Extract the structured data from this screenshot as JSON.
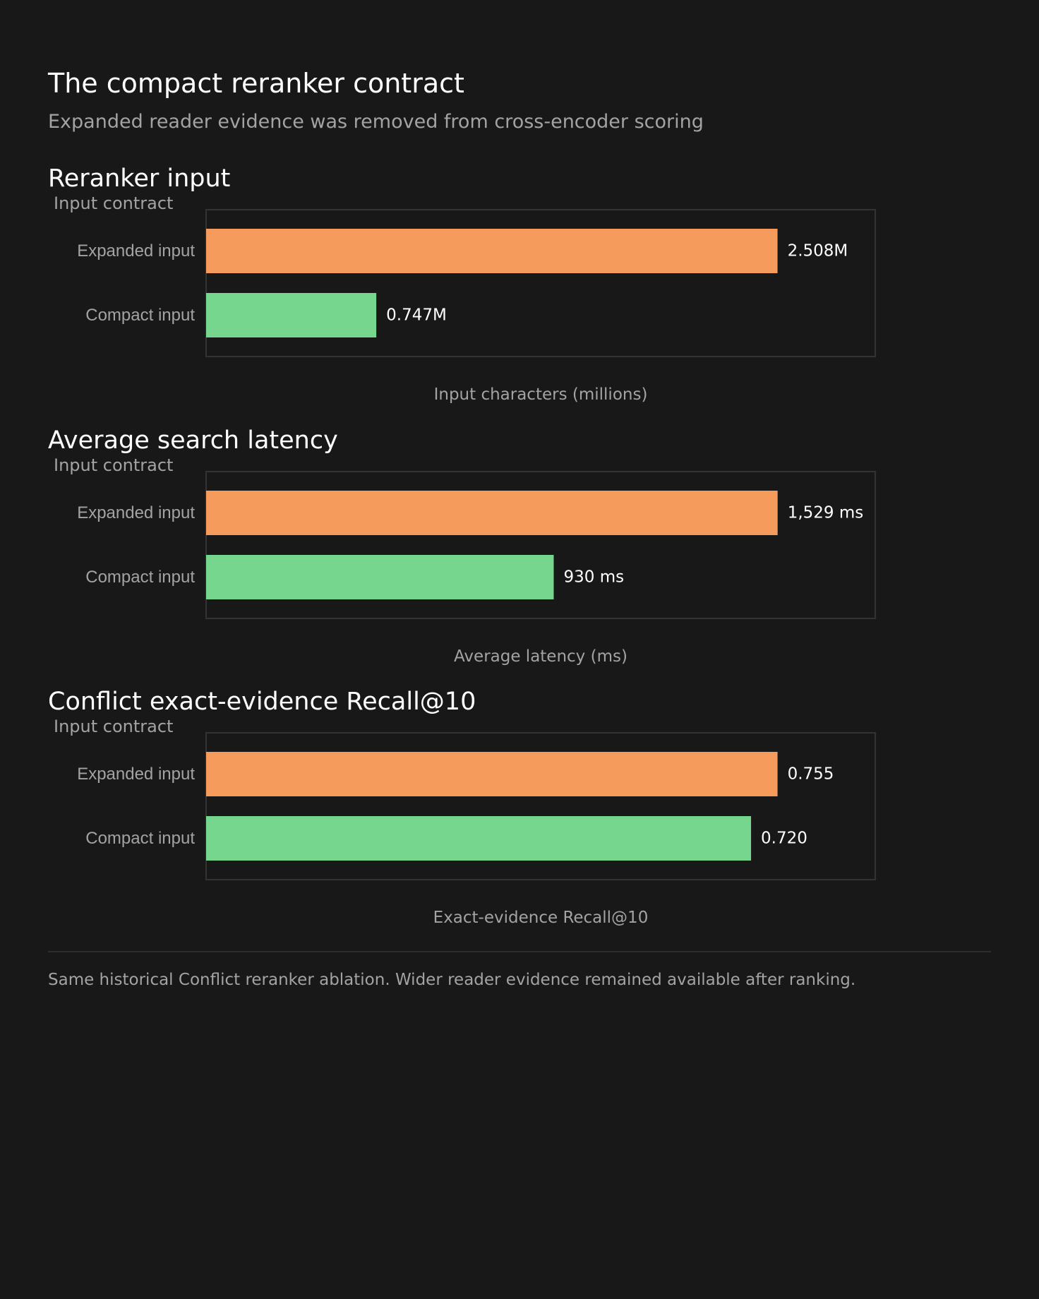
{
  "header": {
    "title": "The compact reranker contract",
    "subtitle": "Expanded reader evidence was removed from cross-encoder scoring"
  },
  "colors": {
    "background": "#181818",
    "expanded": "#f59b5b",
    "compact": "#77d68d",
    "muted_text": "#a3a3a3"
  },
  "chart_data": [
    {
      "type": "bar",
      "orientation": "horizontal",
      "title": "Reranker input",
      "ylabel": "Input contract",
      "xlabel": "Input characters (millions)",
      "categories": [
        "Expanded input",
        "Compact input"
      ],
      "values": [
        2.508,
        0.747
      ],
      "value_labels": [
        "2.508M",
        "0.747M"
      ],
      "bar_colors": [
        "#f59b5b",
        "#77d68d"
      ],
      "xlim": [
        0,
        2.72
      ],
      "grid": false
    },
    {
      "type": "bar",
      "orientation": "horizontal",
      "title": "Average search latency",
      "ylabel": "Input contract",
      "xlabel": "Average latency (ms)",
      "categories": [
        "Expanded input",
        "Compact input"
      ],
      "values": [
        1529,
        930
      ],
      "value_labels": [
        "1,529 ms",
        "930 ms"
      ],
      "bar_colors": [
        "#f59b5b",
        "#77d68d"
      ],
      "xlim": [
        0,
        1658
      ],
      "grid": false
    },
    {
      "type": "bar",
      "orientation": "horizontal",
      "title": "Conflict exact-evidence Recall@10",
      "ylabel": "Input contract",
      "xlabel": "Exact-evidence Recall@10",
      "categories": [
        "Expanded input",
        "Compact input"
      ],
      "values": [
        0.755,
        0.72
      ],
      "value_labels": [
        "0.755",
        "0.720"
      ],
      "bar_colors": [
        "#f59b5b",
        "#77d68d"
      ],
      "xlim": [
        0,
        0.8188
      ],
      "grid": false
    }
  ],
  "footer": {
    "note": "Same historical Conflict reranker ablation. Wider reader evidence remained available after ranking."
  }
}
